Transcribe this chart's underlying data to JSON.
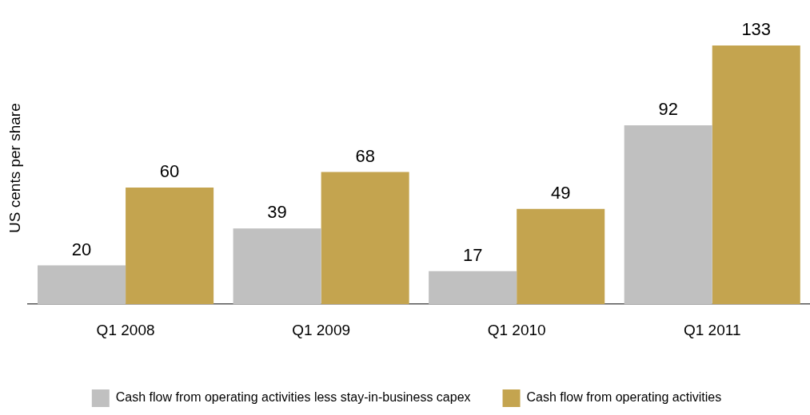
{
  "chart_data": {
    "type": "bar",
    "ylabel": "US cents per share",
    "categories": [
      "Q1 2008",
      "Q1 2009",
      "Q1 2010",
      "Q1 2011"
    ],
    "series": [
      {
        "name": "Cash flow from operating activities less stay-in-business capex",
        "color": "#c0c0c0",
        "values": [
          20,
          39,
          17,
          92
        ]
      },
      {
        "name": "Cash flow from operating activities",
        "color": "#c4a44f",
        "values": [
          60,
          68,
          49,
          133
        ]
      }
    ],
    "data_labels": true,
    "grid": false,
    "legend": "bottom",
    "tick_labels": "x"
  }
}
